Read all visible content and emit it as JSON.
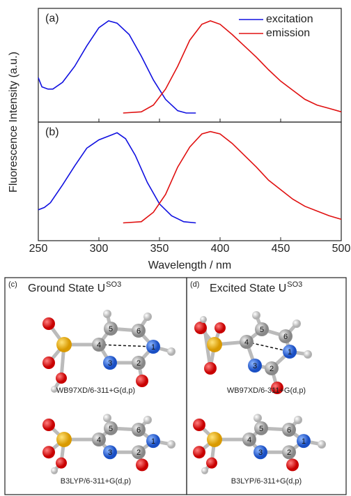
{
  "chart_data": [
    {
      "type": "line",
      "panel_label": "(a)",
      "ylabel": "Fluorescence Intensity (a.u.)",
      "xlim": [
        250,
        500
      ],
      "ylim": [
        0,
        1
      ],
      "legend": "upper right",
      "series": [
        {
          "name": "excitation",
          "color": "#1010e0",
          "x": [
            250,
            253,
            258,
            262,
            270,
            280,
            290,
            300,
            308,
            315,
            325,
            335,
            345,
            355,
            365,
            372,
            380
          ],
          "values": [
            0.39,
            0.31,
            0.29,
            0.29,
            0.35,
            0.49,
            0.67,
            0.83,
            0.89,
            0.87,
            0.77,
            0.58,
            0.37,
            0.2,
            0.1,
            0.08,
            0.08
          ]
        },
        {
          "name": "emission",
          "color": "#e01010",
          "x": [
            320,
            335,
            345,
            355,
            365,
            375,
            385,
            392,
            400,
            410,
            420,
            430,
            440,
            450,
            460,
            470,
            480,
            490,
            500
          ],
          "values": [
            0.08,
            0.09,
            0.15,
            0.29,
            0.49,
            0.72,
            0.86,
            0.89,
            0.86,
            0.77,
            0.67,
            0.57,
            0.46,
            0.36,
            0.28,
            0.2,
            0.15,
            0.12,
            0.09
          ]
        }
      ]
    },
    {
      "type": "line",
      "panel_label": "(b)",
      "xlabel": "Wavelength / nm",
      "xlim": [
        250,
        500
      ],
      "ylim": [
        0,
        1
      ],
      "xticks": [
        250,
        300,
        350,
        400,
        450,
        500
      ],
      "series": [
        {
          "color": "#1010e0",
          "x": [
            250,
            255,
            260,
            270,
            280,
            290,
            300,
            310,
            315,
            322,
            330,
            340,
            350,
            360,
            370,
            380
          ],
          "values": [
            0.26,
            0.28,
            0.32,
            0.47,
            0.63,
            0.78,
            0.85,
            0.89,
            0.91,
            0.86,
            0.72,
            0.49,
            0.31,
            0.21,
            0.16,
            0.15
          ]
        },
        {
          "color": "#e01010",
          "x": [
            320,
            335,
            345,
            355,
            365,
            375,
            385,
            392,
            400,
            410,
            420,
            430,
            440,
            450,
            460,
            470,
            480,
            490,
            500
          ],
          "values": [
            0.15,
            0.16,
            0.24,
            0.39,
            0.62,
            0.79,
            0.9,
            0.92,
            0.9,
            0.82,
            0.72,
            0.62,
            0.51,
            0.43,
            0.35,
            0.29,
            0.25,
            0.21,
            0.18
          ]
        }
      ]
    }
  ],
  "structures": [
    {
      "panel_label": "(c)",
      "title": "Ground State U",
      "title_sup": "SO3",
      "molecules": [
        {
          "method": "WB97XD/6-311+G(d,p)",
          "atom_labels": [
            "4",
            "5",
            "6",
            "1",
            "2",
            "3"
          ]
        },
        {
          "method": "B3LYP/6-311+G(d,p)",
          "atom_labels": [
            "4",
            "5",
            "6",
            "1",
            "2",
            "3"
          ]
        }
      ]
    },
    {
      "panel_label": "(d)",
      "title": "Excited State U",
      "title_sup": "SO3",
      "molecules": [
        {
          "method": "WB97XD/6-311+G(d,p)",
          "atom_labels": [
            "4",
            "5",
            "6",
            "1",
            "2",
            "3"
          ]
        },
        {
          "method": "B3LYP/6-311+G(d,p)",
          "atom_labels": [
            "4",
            "5",
            "6",
            "1",
            "2",
            "3"
          ]
        }
      ]
    }
  ]
}
